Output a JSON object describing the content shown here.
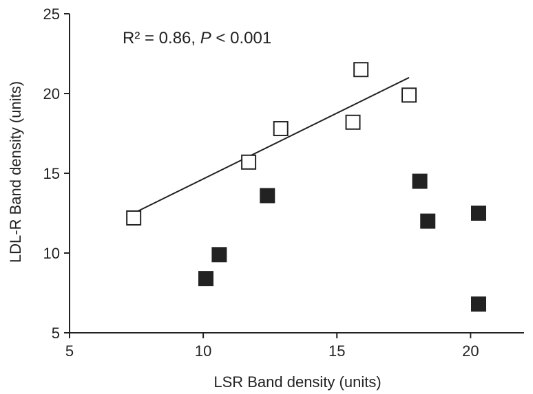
{
  "chart_data": {
    "type": "scatter",
    "xlabel": "LSR Band density (units)",
    "ylabel": "LDL-R Band density (units)",
    "xlim": [
      5,
      22
    ],
    "ylim": [
      5,
      25
    ],
    "x_ticks": [
      5,
      10,
      15,
      20
    ],
    "y_ticks": [
      5,
      10,
      15,
      20,
      25
    ],
    "grid": false,
    "annotation": {
      "prefix": "R² = 0.86, ",
      "p_symbol": "P",
      "suffix": " < 0.001"
    },
    "series": [
      {
        "marker": "open-square",
        "color": "#222222",
        "points": [
          {
            "x": 7.4,
            "y": 12.2
          },
          {
            "x": 11.7,
            "y": 15.7
          },
          {
            "x": 12.9,
            "y": 17.8
          },
          {
            "x": 15.6,
            "y": 18.2
          },
          {
            "x": 15.9,
            "y": 21.5
          },
          {
            "x": 17.7,
            "y": 19.9
          }
        ],
        "trendline": {
          "x0": 7.4,
          "y0": 12.5,
          "x1": 17.7,
          "y1": 21.0
        }
      },
      {
        "marker": "filled-square",
        "color": "#222222",
        "points": [
          {
            "x": 10.1,
            "y": 8.4
          },
          {
            "x": 10.6,
            "y": 9.9
          },
          {
            "x": 12.4,
            "y": 13.6
          },
          {
            "x": 18.1,
            "y": 14.5
          },
          {
            "x": 18.4,
            "y": 12.0
          },
          {
            "x": 20.3,
            "y": 12.5
          },
          {
            "x": 20.3,
            "y": 6.8
          }
        ]
      }
    ]
  }
}
